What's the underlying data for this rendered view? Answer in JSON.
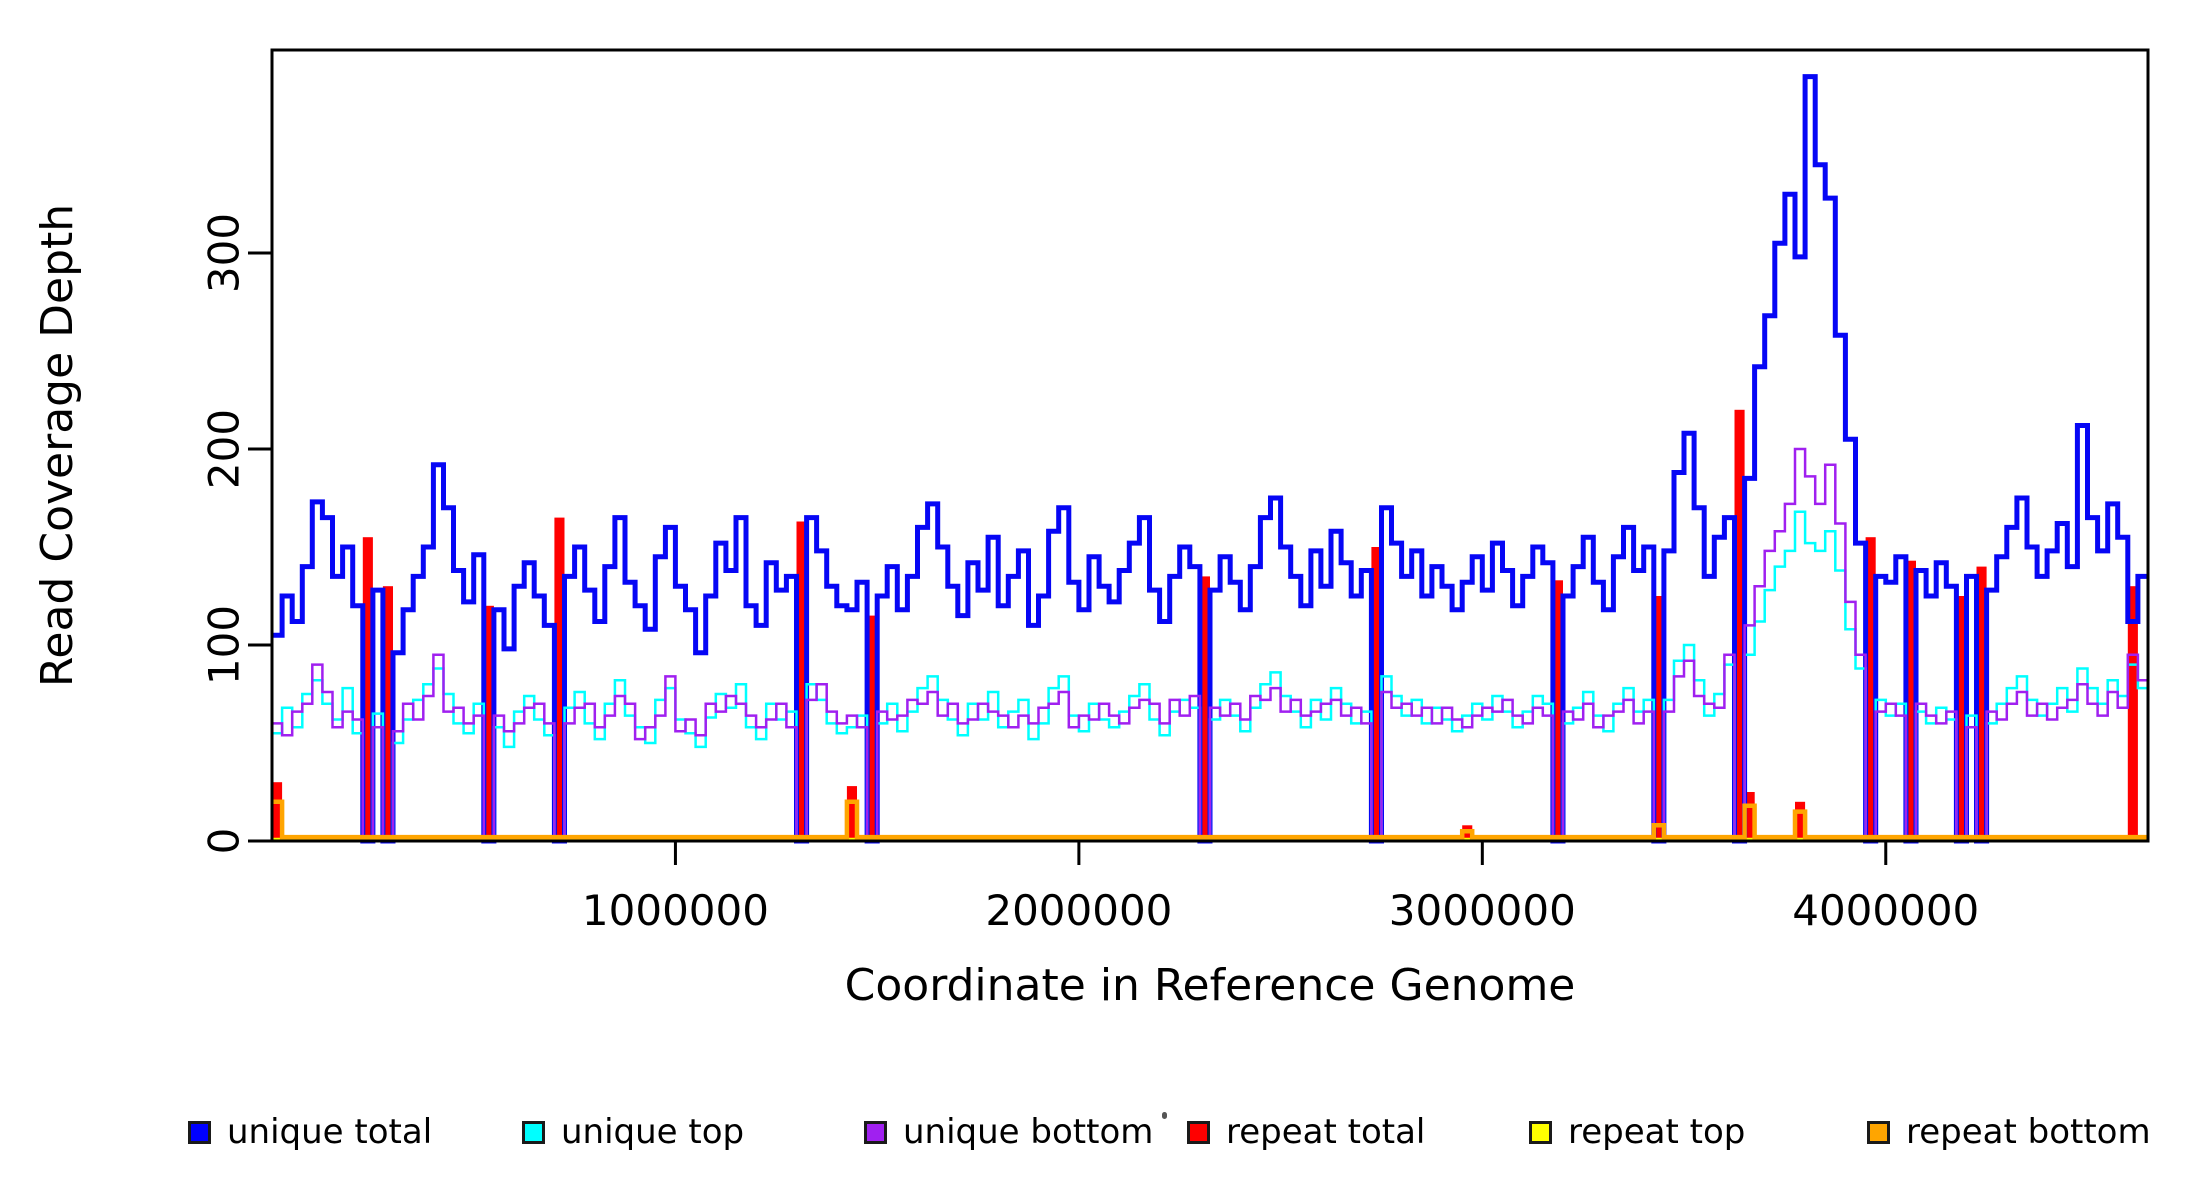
{
  "figure": {
    "background": "#ffffff",
    "axis_color": "#000000",
    "tick_label_color": "#000000"
  },
  "chart_data": {
    "type": "line",
    "step": true,
    "title": "",
    "xlabel": "Coordinate in Reference Genome",
    "ylabel": "Read Coverage Depth",
    "xlim": [
      0,
      4650000
    ],
    "ylim": [
      0,
      403
    ],
    "xticks": [
      1000000,
      2000000,
      3000000,
      4000000
    ],
    "xtick_labels": [
      "1000000",
      "2000000",
      "3000000",
      "4000000"
    ],
    "yticks": [
      0,
      100,
      200,
      300
    ],
    "ytick_labels": [
      "0",
      "100",
      "200",
      "300"
    ],
    "grid": false,
    "legend_position": "bottom",
    "bin_size": 25000,
    "x_start": 0,
    "bins": 186,
    "series": [
      {
        "name": "unique total",
        "color": "#0606F5",
        "legend_color": "#0000FF",
        "style": "step",
        "width": 5,
        "values": [
          105,
          125,
          112,
          140,
          173,
          165,
          135,
          150,
          120,
          0,
          128,
          0,
          96,
          118,
          135,
          150,
          192,
          170,
          138,
          122,
          146,
          0,
          118,
          98,
          130,
          142,
          125,
          110,
          0,
          135,
          150,
          128,
          112,
          140,
          165,
          132,
          120,
          108,
          145,
          160,
          130,
          118,
          96,
          125,
          152,
          138,
          165,
          120,
          110,
          142,
          128,
          135,
          0,
          165,
          148,
          130,
          120,
          118,
          132,
          0,
          125,
          140,
          118,
          135,
          160,
          172,
          150,
          130,
          115,
          142,
          128,
          155,
          120,
          135,
          148,
          110,
          125,
          158,
          170,
          132,
          118,
          145,
          130,
          122,
          138,
          152,
          165,
          128,
          112,
          135,
          150,
          140,
          0,
          128,
          145,
          132,
          118,
          140,
          165,
          175,
          150,
          135,
          120,
          148,
          130,
          158,
          142,
          125,
          138,
          0,
          170,
          152,
          135,
          148,
          125,
          140,
          130,
          118,
          132,
          145,
          128,
          152,
          138,
          120,
          135,
          150,
          142,
          0,
          125,
          140,
          155,
          132,
          118,
          145,
          160,
          138,
          150,
          0,
          148,
          188,
          208,
          170,
          135,
          155,
          165,
          0,
          185,
          242,
          268,
          305,
          330,
          298,
          390,
          345,
          328,
          258,
          205,
          152,
          0,
          135,
          132,
          145,
          0,
          138,
          125,
          142,
          130,
          0,
          135,
          0,
          128,
          145,
          160,
          175,
          150,
          135,
          148,
          162,
          140,
          212,
          165,
          148,
          172,
          155,
          112,
          135
        ]
      },
      {
        "name": "unique top",
        "color": "#00FFFF",
        "legend_color": "#00FFFF",
        "style": "step",
        "width": 2.5,
        "values": [
          55,
          68,
          58,
          75,
          82,
          70,
          62,
          78,
          55,
          0,
          65,
          0,
          50,
          62,
          72,
          80,
          88,
          75,
          60,
          55,
          70,
          0,
          58,
          48,
          66,
          74,
          62,
          54,
          0,
          68,
          76,
          60,
          52,
          70,
          82,
          64,
          58,
          50,
          72,
          78,
          62,
          55,
          48,
          63,
          75,
          68,
          80,
          58,
          52,
          70,
          62,
          66,
          0,
          80,
          72,
          60,
          55,
          58,
          64,
          0,
          60,
          70,
          56,
          66,
          78,
          84,
          72,
          62,
          54,
          70,
          62,
          76,
          58,
          66,
          72,
          52,
          60,
          78,
          84,
          64,
          56,
          70,
          62,
          58,
          66,
          74,
          80,
          62,
          54,
          66,
          72,
          68,
          0,
          62,
          72,
          64,
          56,
          68,
          80,
          86,
          74,
          66,
          58,
          72,
          62,
          78,
          70,
          60,
          66,
          0,
          84,
          74,
          64,
          72,
          60,
          68,
          62,
          56,
          64,
          70,
          62,
          74,
          66,
          58,
          66,
          74,
          70,
          0,
          60,
          68,
          76,
          64,
          56,
          70,
          78,
          66,
          72,
          0,
          72,
          92,
          100,
          82,
          64,
          75,
          90,
          0,
          95,
          112,
          128,
          140,
          148,
          168,
          152,
          148,
          158,
          138,
          108,
          88,
          0,
          72,
          64,
          70,
          0,
          66,
          60,
          68,
          62,
          0,
          64,
          0,
          60,
          70,
          78,
          84,
          72,
          64,
          70,
          78,
          66,
          88,
          78,
          70,
          82,
          74,
          90,
          78
        ]
      },
      {
        "name": "unique bottom",
        "color": "#A020F0",
        "legend_color": "#A020F0",
        "style": "step",
        "width": 2.5,
        "values": [
          60,
          54,
          66,
          70,
          90,
          76,
          58,
          66,
          62,
          0,
          58,
          0,
          56,
          70,
          62,
          74,
          95,
          66,
          68,
          60,
          64,
          0,
          64,
          56,
          60,
          68,
          70,
          60,
          0,
          60,
          68,
          70,
          58,
          64,
          74,
          70,
          52,
          58,
          64,
          84,
          56,
          62,
          54,
          70,
          66,
          74,
          70,
          64,
          58,
          62,
          70,
          58,
          0,
          72,
          80,
          66,
          60,
          64,
          58,
          0,
          66,
          62,
          64,
          72,
          70,
          76,
          64,
          70,
          60,
          62,
          70,
          66,
          64,
          58,
          64,
          60,
          68,
          70,
          76,
          58,
          64,
          62,
          70,
          64,
          60,
          68,
          72,
          70,
          60,
          72,
          64,
          74,
          0,
          68,
          64,
          70,
          62,
          74,
          72,
          78,
          66,
          72,
          64,
          66,
          70,
          72,
          64,
          68,
          60,
          0,
          76,
          68,
          70,
          64,
          68,
          60,
          68,
          62,
          58,
          64,
          68,
          66,
          72,
          64,
          60,
          68,
          64,
          0,
          66,
          62,
          70,
          58,
          64,
          66,
          72,
          60,
          66,
          0,
          66,
          84,
          92,
          74,
          70,
          68,
          95,
          0,
          110,
          130,
          148,
          158,
          172,
          200,
          186,
          172,
          192,
          162,
          122,
          95,
          0,
          66,
          70,
          64,
          0,
          70,
          64,
          60,
          66,
          0,
          58,
          0,
          66,
          62,
          70,
          76,
          64,
          70,
          62,
          68,
          72,
          80,
          70,
          64,
          76,
          68,
          95,
          82
        ]
      },
      {
        "name": "repeat total",
        "color": "#FF0000",
        "legend_color": "#FF0000",
        "style": "bars",
        "width": 5,
        "baseline": 0,
        "spikes": {
          "0": 30,
          "9": 155,
          "11": 130,
          "21": 120,
          "28": 165,
          "52": 163,
          "57": 28,
          "59": 115,
          "92": 135,
          "109": 150,
          "118": 8,
          "127": 133,
          "137": 125,
          "145": 220,
          "146": 25,
          "151": 20,
          "158": 155,
          "162": 143,
          "167": 125,
          "169": 140,
          "184": 130
        }
      },
      {
        "name": "repeat top",
        "color": "#FFFF00",
        "legend_color": "#FFFF00",
        "style": "step",
        "width": 2.5,
        "baseline": 1,
        "spikes": {}
      },
      {
        "name": "repeat bottom",
        "color": "#FFA500",
        "legend_color": "#FFA500",
        "style": "step",
        "width": 4.5,
        "baseline": 2,
        "spikes": {
          "0": 20,
          "57": 20,
          "118": 5,
          "137": 8,
          "146": 18,
          "151": 15
        }
      }
    ],
    "legend_x_positions": [
      188,
      522,
      864,
      1187,
      1529,
      1867
    ]
  }
}
